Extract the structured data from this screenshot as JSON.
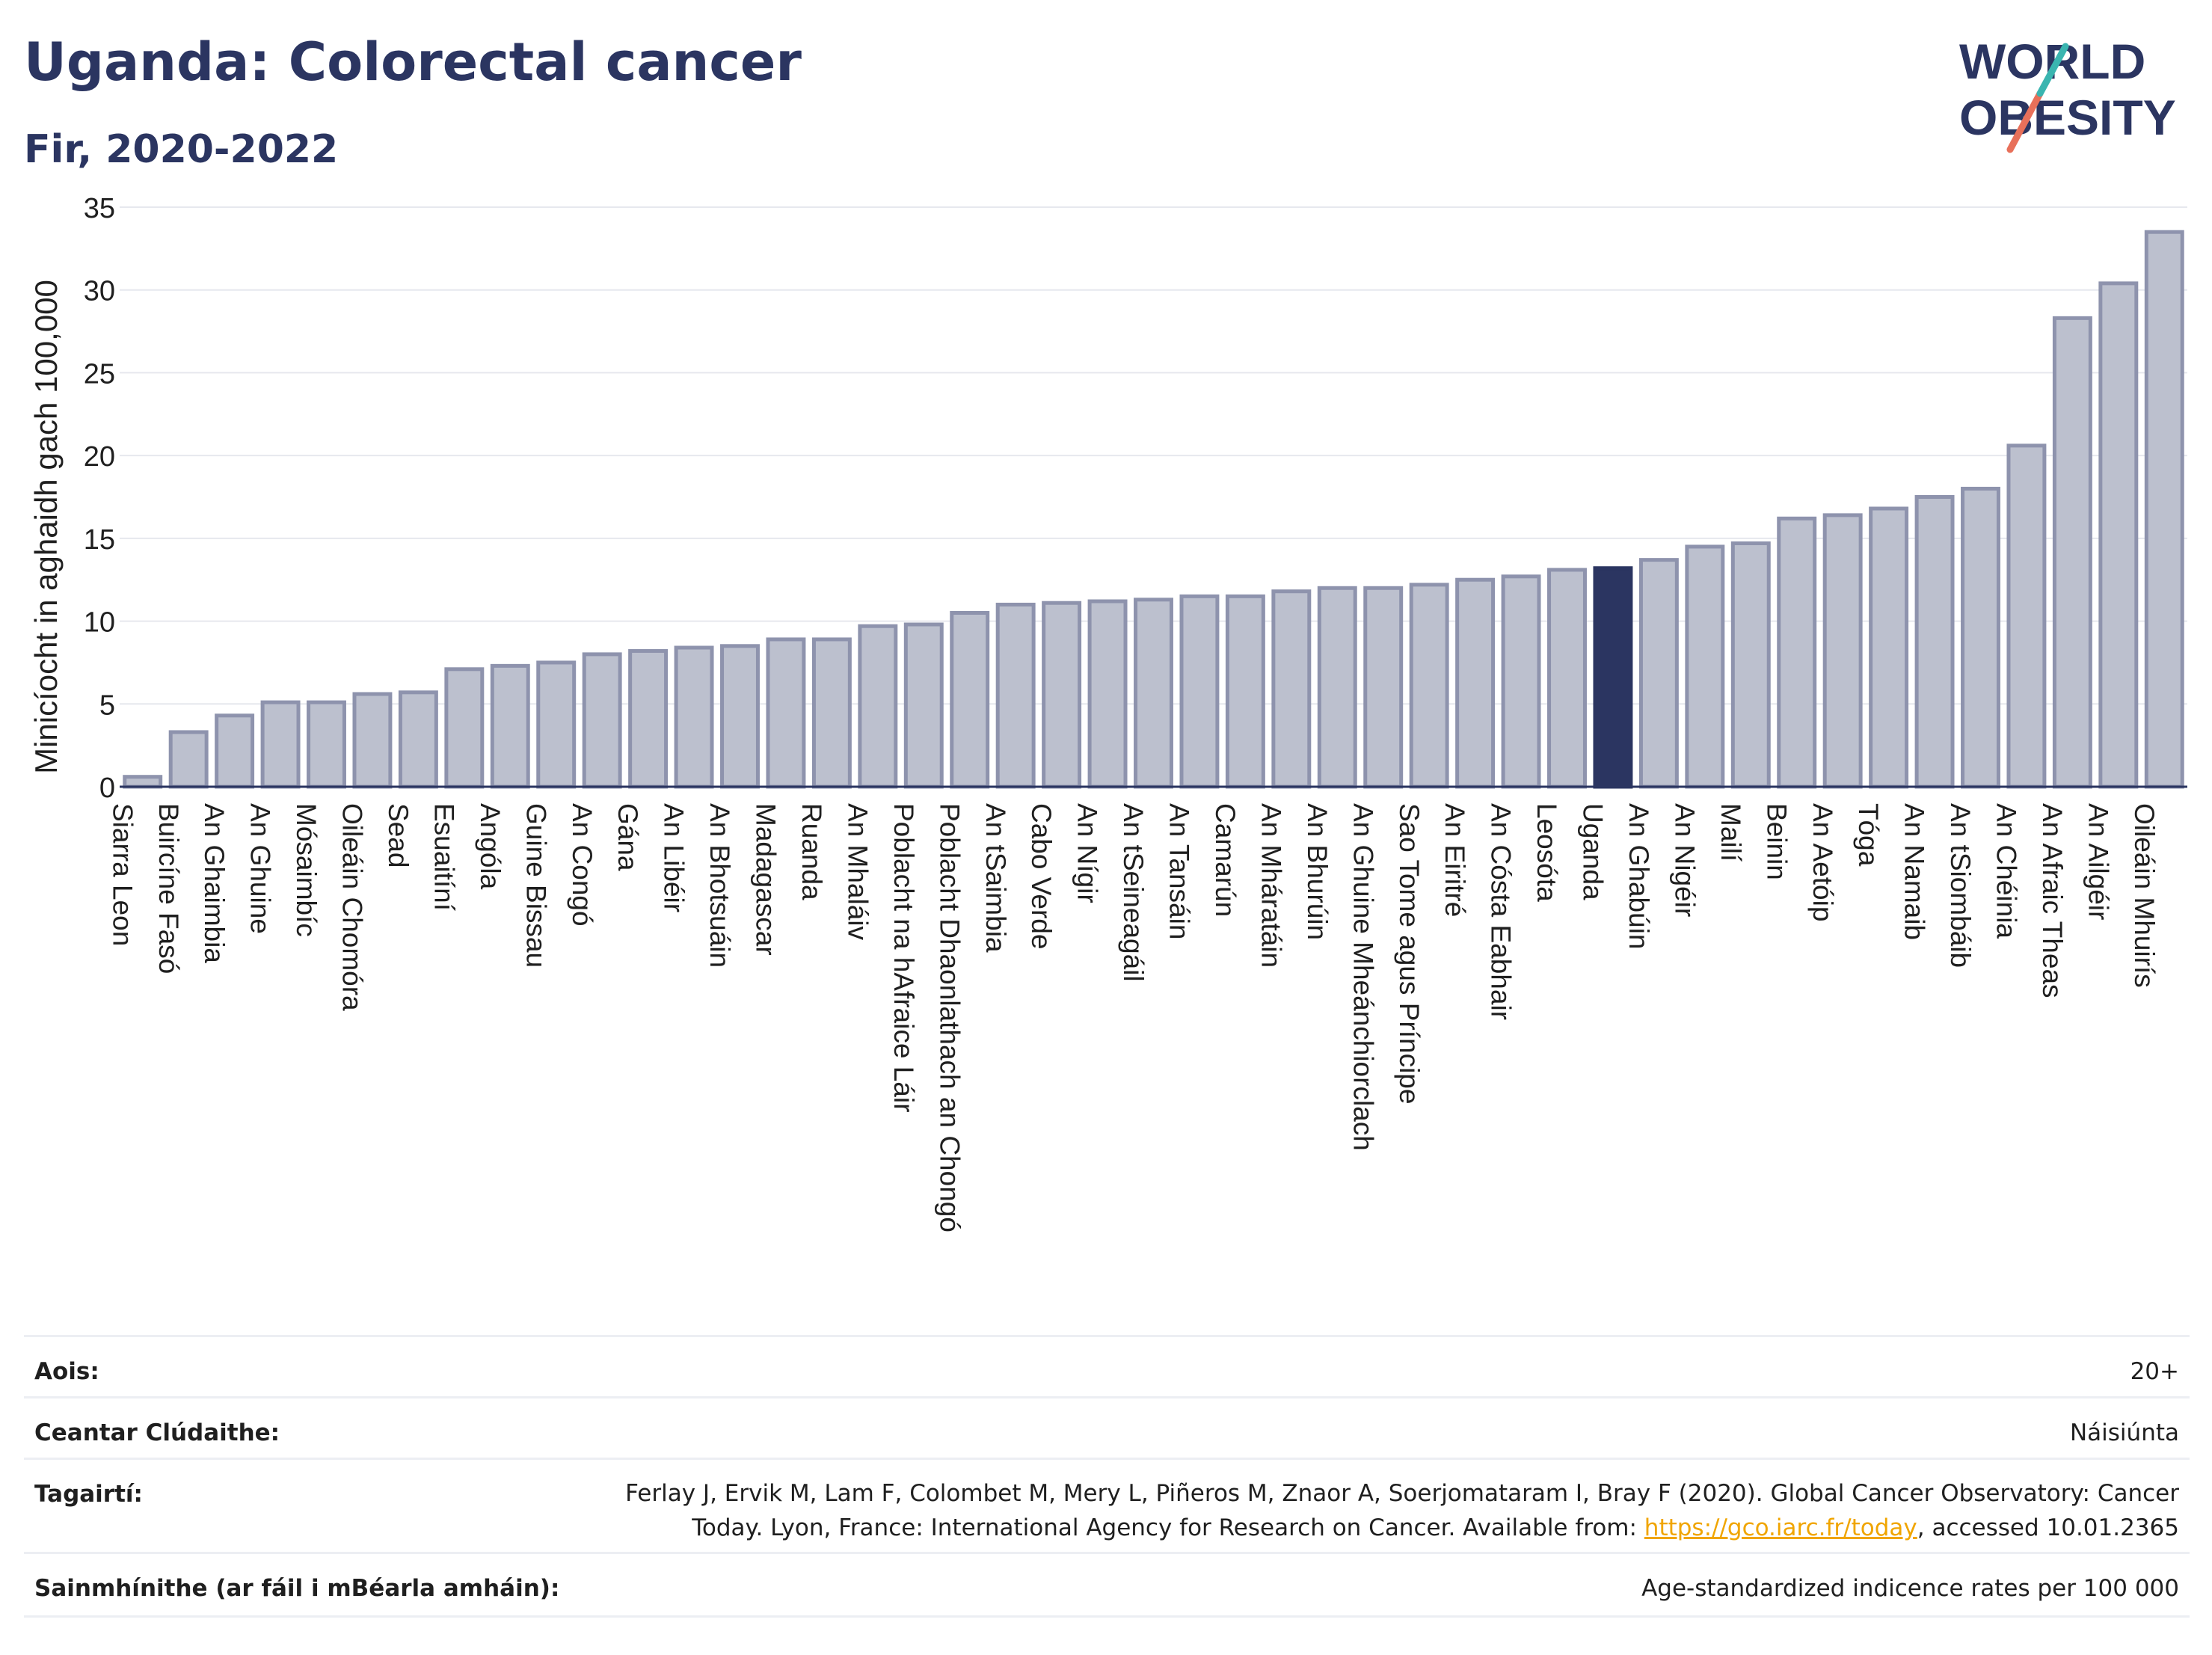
{
  "title": "Uganda: Colorectal cancer",
  "subtitle": "Fir, 2020-2022",
  "logo": {
    "line1": "WORLD",
    "line2": "OBESITY"
  },
  "colors": {
    "bar": "#bcc0ce",
    "bar_stroke": "#8e93ad",
    "highlight": "#2b3561",
    "title": "#2b3561",
    "link": "#f0a500",
    "grid": "#e6e8ee"
  },
  "chart_data": {
    "type": "bar",
    "ylabel": "Minicíocht in aghaidh gach 100,000",
    "xlabel": "",
    "ylim": [
      0,
      35
    ],
    "yticks": [
      0,
      5,
      10,
      15,
      20,
      25,
      30,
      35
    ],
    "grid": true,
    "highlight": "Uganda",
    "categories": [
      "Siarra Leon",
      "Buircíne Fasó",
      "An Ghaimbia",
      "An Ghuine",
      "Mósaimbíc",
      "Oileáin Chomóra",
      "Sead",
      "Esuaitíní",
      "Angóla",
      "Guine Bissau",
      "An Congó",
      "Gána",
      "An Libéir",
      "An Bhotsuáin",
      "Madagascar",
      "Ruanda",
      "An Mhaláiv",
      "Poblacht na hAfraice Láir",
      "Poblacht Dhaonlathach an Chongó",
      "An tSaimbia",
      "Cabo Verde",
      "An Nígir",
      "An tSeineagáil",
      "An Tansáin",
      "Camarún",
      "An Mháratáin",
      "An Bhurúin",
      "An Ghuine Mheánchiorclach",
      "Sao Tome agus Príncipe",
      "An Eiritré",
      "An Cósta Eabhair",
      "Leosóta",
      "Uganda",
      "An Ghabúin",
      "An Nigéir",
      "Mailí",
      "Beinin",
      "An Aetóip",
      "Tóga",
      "An Namaib",
      "An tSiombáib",
      "An Chéinia",
      "An Afraic Theas",
      "An Ailgéir",
      "Oileáin Mhuirís"
    ],
    "values": [
      0.6,
      3.3,
      4.3,
      5.1,
      5.1,
      5.6,
      5.7,
      7.1,
      7.3,
      7.5,
      8.0,
      8.2,
      8.4,
      8.5,
      8.9,
      8.9,
      9.7,
      9.8,
      10.5,
      11.0,
      11.1,
      11.2,
      11.3,
      11.5,
      11.5,
      11.8,
      12.0,
      12.0,
      12.2,
      12.5,
      12.7,
      13.1,
      13.2,
      13.7,
      14.5,
      14.7,
      16.2,
      16.4,
      16.8,
      17.5,
      18.0,
      20.6,
      28.3,
      30.4,
      33.5
    ]
  },
  "meta": {
    "age_label": "Aois:",
    "age_value": "20+",
    "coverage_label": "Ceantar Clúdaithe:",
    "coverage_value": "Náisiúnta",
    "refs_label": "Tagairtí:",
    "refs_text_1": "Ferlay J, Ervik M, Lam F, Colombet M, Mery L, Piñeros M, Znaor A, Soerjomataram I, Bray F (2020). Global Cancer Observatory: Cancer Today. Lyon, France: International Agency for Research on Cancer. Available from: ",
    "refs_link": "https://gco.iarc.fr/today",
    "refs_text_2": ", accessed 10.01.2365",
    "def_label": "Sainmhínithe (ar fáil i mBéarla amháin):",
    "def_value": "Age-standardized indicence rates per 100 000"
  }
}
